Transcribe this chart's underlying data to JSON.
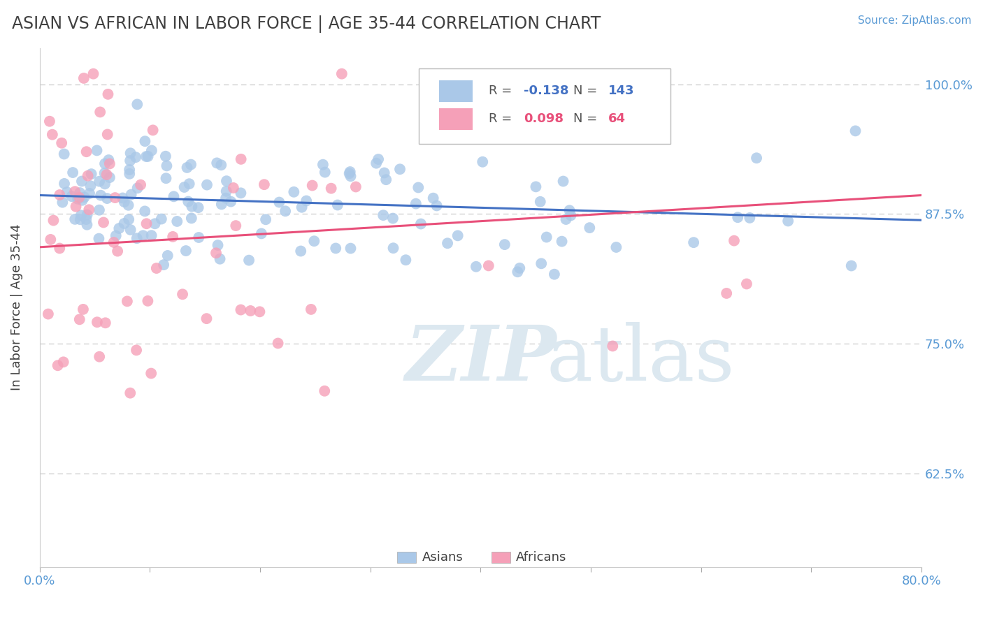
{
  "title": "ASIAN VS AFRICAN IN LABOR FORCE | AGE 35-44 CORRELATION CHART",
  "ylabel": "In Labor Force | Age 35-44",
  "source": "Source: ZipAtlas.com",
  "xlim": [
    0.0,
    0.8
  ],
  "ylim": [
    0.535,
    1.035
  ],
  "xticks": [
    0.0,
    0.1,
    0.2,
    0.3,
    0.4,
    0.5,
    0.6,
    0.7,
    0.8
  ],
  "yticks": [
    0.625,
    0.75,
    0.875,
    1.0
  ],
  "yticklabels": [
    "62.5%",
    "75.0%",
    "87.5%",
    "100.0%"
  ],
  "legend_blue_r": "-0.138",
  "legend_blue_n": "143",
  "legend_pink_r": "0.098",
  "legend_pink_n": "64",
  "blue_color": "#aac8e8",
  "pink_color": "#f5a0b8",
  "blue_line_color": "#4472c4",
  "pink_line_color": "#e8507a",
  "grid_color": "#cccccc",
  "title_color": "#404040",
  "axis_color": "#5b9bd5",
  "watermark_color": "#dce8f0",
  "blue_trend_x0": 0.0,
  "blue_trend_x1": 0.8,
  "blue_trend_y0": 0.893,
  "blue_trend_y1": 0.869,
  "pink_trend_x0": 0.0,
  "pink_trend_x1": 0.8,
  "pink_trend_y0": 0.843,
  "pink_trend_y1": 0.893
}
